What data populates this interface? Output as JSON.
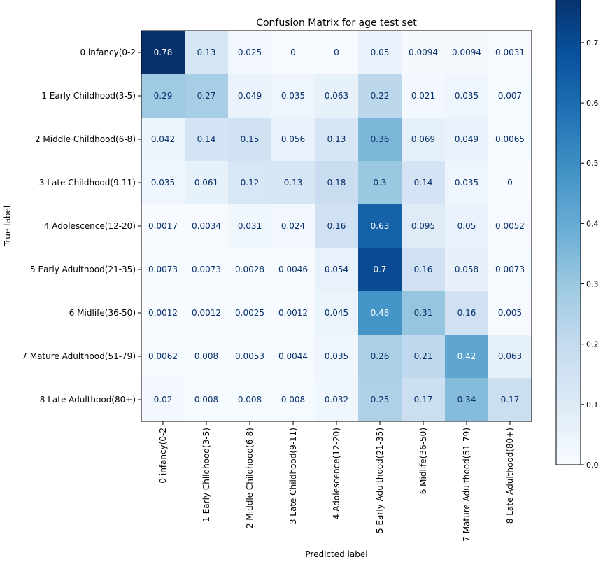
{
  "chart_data": {
    "type": "heatmap",
    "title": "Confusion Matrix for age test set",
    "xlabel": "Predicted label",
    "ylabel": "True label",
    "labels": [
      "0 infancy(0-2",
      "1 Early Childhood(3-5)",
      "2 Middle Childhood(6-8)",
      "3 Late Childhood(9-11)",
      "4 Adolescence(12-20)",
      "5 Early Adulthood(21-35)",
      "6 Midlife(36-50)",
      "7 Mature Adulthood(51-79)",
      "8 Late Adulthood(80+)"
    ],
    "matrix": [
      [
        "0.78",
        "0.13",
        "0.025",
        "0",
        "0",
        "0.05",
        "0.0094",
        "0.0094",
        "0.0031"
      ],
      [
        "0.29",
        "0.27",
        "0.049",
        "0.035",
        "0.063",
        "0.22",
        "0.021",
        "0.035",
        "0.007"
      ],
      [
        "0.042",
        "0.14",
        "0.15",
        "0.056",
        "0.13",
        "0.36",
        "0.069",
        "0.049",
        "0.0065"
      ],
      [
        "0.035",
        "0.061",
        "0.12",
        "0.13",
        "0.18",
        "0.3",
        "0.14",
        "0.035",
        "0"
      ],
      [
        "0.0017",
        "0.0034",
        "0.031",
        "0.024",
        "0.16",
        "0.63",
        "0.095",
        "0.05",
        "0.0052"
      ],
      [
        "0.0073",
        "0.0073",
        "0.0028",
        "0.0046",
        "0.054",
        "0.7",
        "0.16",
        "0.058",
        "0.0073"
      ],
      [
        "0.0012",
        "0.0012",
        "0.0025",
        "0.0012",
        "0.045",
        "0.48",
        "0.31",
        "0.16",
        "0.005"
      ],
      [
        "0.0062",
        "0.008",
        "0.0053",
        "0.0044",
        "0.035",
        "0.26",
        "0.21",
        "0.42",
        "0.063"
      ],
      [
        "0.02",
        "0.008",
        "0.008",
        "0.008",
        "0.032",
        "0.25",
        "0.17",
        "0.34",
        "0.17"
      ]
    ],
    "colorbar": {
      "min": 0.0,
      "max": 0.78,
      "ticks": [
        "0.0",
        "0.1",
        "0.2",
        "0.3",
        "0.4",
        "0.5",
        "0.6",
        "0.7"
      ]
    },
    "colormap": "Blues"
  }
}
